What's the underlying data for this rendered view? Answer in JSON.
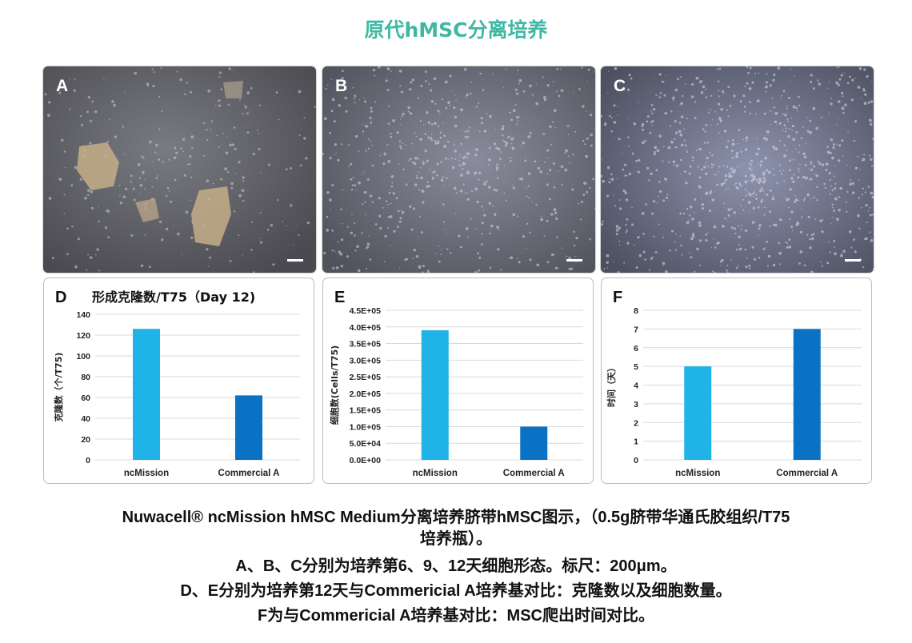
{
  "page": {
    "title": "原代hMSC分离培养"
  },
  "images": [
    {
      "label": "A"
    },
    {
      "label": "B"
    },
    {
      "label": "C"
    }
  ],
  "colors": {
    "ncmission": "#1fb3e8",
    "commercial": "#0a72c4",
    "title": "#3fb7a5",
    "grid": "#d9d9d9"
  },
  "chart_data": [
    {
      "panel": "D",
      "type": "bar",
      "title": "形成克隆数/T75（Day 12)",
      "ylabel": "克隆数（个/T75)",
      "categories": [
        "ncMission",
        "Commercial A"
      ],
      "values": [
        126,
        62
      ],
      "ylim": [
        0,
        140
      ],
      "yticks": [
        "0",
        "20",
        "40",
        "60",
        "80",
        "100",
        "120",
        "140"
      ],
      "grid": true
    },
    {
      "panel": "E",
      "type": "bar",
      "title": "",
      "ylabel": "细胞数(Cells/T75)",
      "categories": [
        "ncMission",
        "Commercial A"
      ],
      "values": [
        390000,
        100000
      ],
      "ylim": [
        0,
        450000
      ],
      "yticks": [
        "0.0E+00",
        "5.0E+04",
        "1.0E+05",
        "1.5E+05",
        "2.0E+05",
        "2.5E+05",
        "3.0E+05",
        "3.5E+05",
        "4.0E+05",
        "4.5E+05"
      ],
      "grid": true
    },
    {
      "panel": "F",
      "type": "bar",
      "title": "",
      "ylabel": "时间（天）",
      "categories": [
        "ncMission",
        "Commercial A"
      ],
      "values": [
        5,
        7
      ],
      "ylim": [
        0,
        8
      ],
      "yticks": [
        "0",
        "1",
        "2",
        "3",
        "4",
        "5",
        "6",
        "7",
        "8"
      ],
      "grid": true
    }
  ],
  "caption": {
    "line1": "Nuwacell® ncMission hMSC Medium分离培养脐带hMSC图示，（0.5g脐带华通氏胶组织/T75",
    "line2": "培养瓶）。",
    "line3": "A、B、C分别为培养第6、9、12天细胞形态。标尺：200μm。",
    "line4": "D、E分别为培养第12天与Commericial A培养基对比：克隆数以及细胞数量。",
    "line5": "F为与Commericial A培养基对比：MSC爬出时间对比。"
  }
}
